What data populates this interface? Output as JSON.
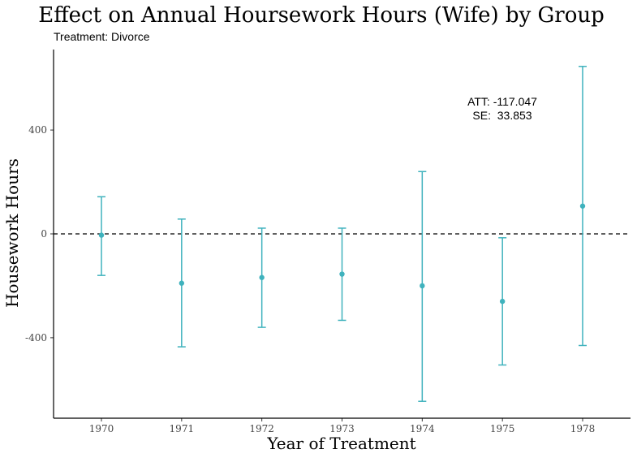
{
  "chart_data": {
    "type": "errorbar",
    "title": "Effect on Annual Hoursework Hours (Wife) by Group",
    "subtitle": "Treatment: Divorce",
    "xlabel": "Year of Treatment",
    "ylabel": "Housework Hours",
    "categories": [
      "1970",
      "1971",
      "1972",
      "1973",
      "1974",
      "1975",
      "1978"
    ],
    "series": [
      {
        "estimates": [
          -5,
          -190,
          -168,
          -155,
          -200,
          -260,
          107
        ],
        "lower": [
          -160,
          -435,
          -360,
          -333,
          -645,
          -505,
          -430
        ],
        "upper": [
          143,
          57,
          22,
          22,
          240,
          -15,
          645
        ]
      }
    ],
    "reference_line": 0,
    "y_ticks": [
      -400,
      0,
      400
    ],
    "ylim": [
      -710,
      710
    ],
    "grid": false,
    "annotation": {
      "line1": "ATT: -117.047",
      "line2": "SE:  33.853"
    },
    "colors": {
      "series": "#3fb2bd",
      "reference": "#000000",
      "axis": "#000000"
    }
  }
}
